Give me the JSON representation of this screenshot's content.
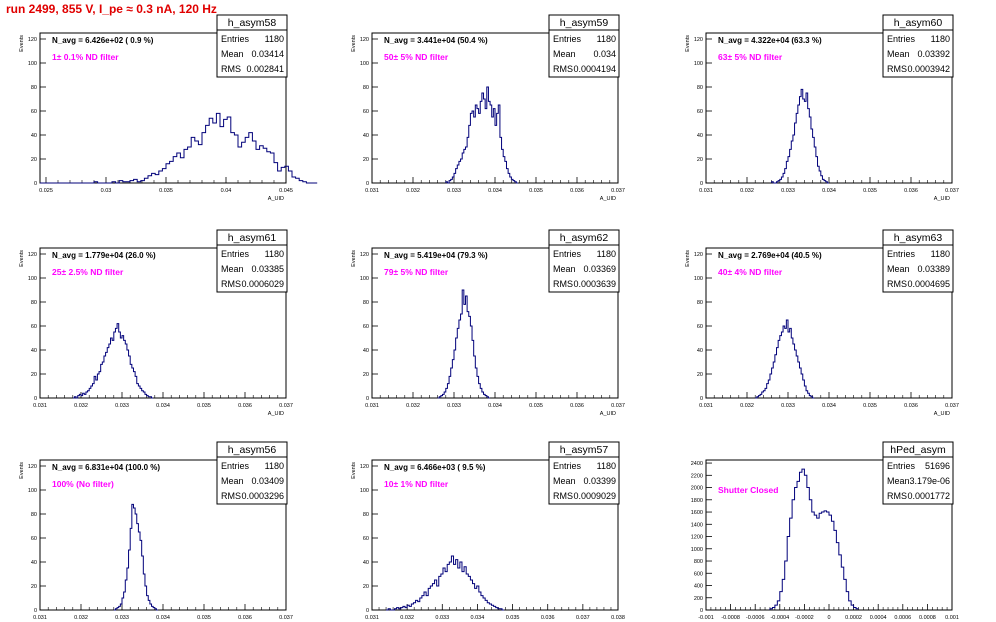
{
  "run_title": "run 2499,   855 V, I_pe ≈ 0.3 nA, 120 Hz",
  "colors": {
    "histogram": "#00007a",
    "filter_label": "#ff00ff",
    "run_title": "#e00000",
    "text": "#000000"
  },
  "stats_labels": {
    "entries": "Entries",
    "mean": "Mean",
    "rms": "RMS"
  },
  "chart_data": [
    {
      "type": "histogram",
      "name": "h_asym58",
      "navg": "N_avg = 6.426e+02 ( 0.9 %)",
      "filter": "1± 0.1% ND filter",
      "entries": "1180",
      "mean": "0.03414",
      "rms": "0.002841",
      "xlabel": "A_UID",
      "ylabel": "Events",
      "xlim": [
        0.0245,
        0.045
      ],
      "ylim": [
        0,
        125
      ],
      "xticks": [
        "0.025",
        "0.03",
        "0.035",
        "0.04",
        "0.045"
      ],
      "xtick_values": [
        0.025,
        0.03,
        0.035,
        0.04,
        0.045
      ],
      "yticks": [
        "0",
        "20",
        "40",
        "60",
        "80",
        "100",
        "120"
      ],
      "ytick_values": [
        0,
        20,
        40,
        60,
        80,
        100,
        120
      ],
      "bin_low": 0.0245,
      "bin_width": 0.0003,
      "counts": [
        0,
        0,
        0,
        0,
        0,
        0,
        0,
        0,
        0,
        0,
        0,
        0,
        0,
        0,
        0,
        1,
        0,
        0,
        0,
        0,
        1,
        0,
        2,
        1,
        1,
        2,
        3,
        1,
        2,
        4,
        6,
        8,
        7,
        10,
        12,
        16,
        18,
        22,
        25,
        21,
        28,
        30,
        38,
        35,
        32,
        42,
        48,
        54,
        50,
        58,
        47,
        53,
        55,
        42,
        40,
        30,
        34,
        38,
        42,
        35,
        28,
        31,
        29,
        26,
        25,
        17,
        10,
        13,
        14,
        10,
        5,
        4,
        2,
        1,
        0,
        0,
        0
      ]
    },
    {
      "type": "histogram",
      "name": "h_asym59",
      "navg": "N_avg = 3.441e+04 (50.4 %)",
      "filter": "50± 5% ND filter",
      "entries": "1180",
      "mean": "0.034",
      "rms": "0.0004194",
      "xlabel": "A_UID",
      "ylabel": "Events",
      "xlim": [
        0.031,
        0.037
      ],
      "ylim": [
        0,
        125
      ],
      "xticks": [
        "0.031",
        "0.032",
        "0.033",
        "0.034",
        "0.035",
        "0.036",
        "0.037"
      ],
      "xtick_values": [
        0.031,
        0.032,
        0.033,
        0.034,
        0.035,
        0.036,
        0.037
      ],
      "yticks": [
        "0",
        "20",
        "40",
        "60",
        "80",
        "100",
        "120"
      ],
      "ytick_values": [
        0,
        20,
        40,
        60,
        80,
        100,
        120
      ],
      "bin_low": 0.0328,
      "bin_width": 4e-05,
      "counts": [
        1,
        0,
        2,
        3,
        5,
        8,
        12,
        15,
        18,
        20,
        25,
        28,
        30,
        38,
        48,
        58,
        60,
        55,
        65,
        62,
        58,
        68,
        75,
        70,
        62,
        80,
        68,
        65,
        55,
        62,
        48,
        58,
        65,
        38,
        28,
        22,
        18,
        12,
        8,
        5,
        3,
        2,
        1,
        0
      ]
    },
    {
      "type": "histogram",
      "name": "h_asym60",
      "navg": "N_avg = 4.322e+04 (63.3 %)",
      "filter": "63± 5% ND filter",
      "entries": "1180",
      "mean": "0.03392",
      "rms": "0.0003942",
      "xlabel": "A_UID",
      "ylabel": "Events",
      "xlim": [
        0.031,
        0.037
      ],
      "ylim": [
        0,
        125
      ],
      "xticks": [
        "0.031",
        "0.032",
        "0.033",
        "0.034",
        "0.035",
        "0.036",
        "0.037"
      ],
      "xtick_values": [
        0.031,
        0.032,
        0.033,
        0.034,
        0.035,
        0.036,
        0.037
      ],
      "yticks": [
        "0",
        "20",
        "40",
        "60",
        "80",
        "100",
        "120"
      ],
      "ytick_values": [
        0,
        20,
        40,
        60,
        80,
        100,
        120
      ],
      "bin_low": 0.0326,
      "bin_width": 4e-05,
      "counts": [
        1,
        0,
        0,
        1,
        2,
        3,
        5,
        8,
        12,
        18,
        22,
        28,
        35,
        40,
        50,
        58,
        65,
        72,
        78,
        70,
        68,
        75,
        62,
        55,
        45,
        38,
        30,
        22,
        14,
        10,
        6,
        3,
        2,
        1,
        0
      ]
    },
    {
      "type": "histogram",
      "name": "h_asym61",
      "navg": "N_avg = 1.779e+04 (26.0 %)",
      "filter": "25± 2.5% ND filter",
      "entries": "1180",
      "mean": "0.03385",
      "rms": "0.0006029",
      "xlabel": "A_UID",
      "ylabel": "Events",
      "xlim": [
        0.031,
        0.037
      ],
      "ylim": [
        0,
        125
      ],
      "xticks": [
        "0.031",
        "0.032",
        "0.033",
        "0.034",
        "0.035",
        "0.036",
        "0.037"
      ],
      "xtick_values": [
        0.031,
        0.032,
        0.033,
        0.034,
        0.035,
        0.036,
        0.037
      ],
      "yticks": [
        "0",
        "20",
        "40",
        "60",
        "80",
        "100",
        "120"
      ],
      "ytick_values": [
        0,
        20,
        40,
        60,
        80,
        100,
        120
      ],
      "bin_low": 0.0318,
      "bin_width": 4e-05,
      "counts": [
        0,
        1,
        0,
        2,
        3,
        2,
        4,
        3,
        5,
        6,
        8,
        10,
        12,
        18,
        15,
        20,
        22,
        28,
        30,
        35,
        38,
        42,
        45,
        50,
        48,
        55,
        58,
        62,
        55,
        50,
        52,
        48,
        45,
        40,
        35,
        28,
        25,
        22,
        18,
        12,
        10,
        8,
        6,
        5,
        3,
        2,
        1,
        1,
        0
      ]
    },
    {
      "type": "histogram",
      "name": "h_asym62",
      "navg": "N_avg = 5.419e+04 (79.3 %)",
      "filter": "79± 5% ND filter",
      "entries": "1180",
      "mean": "0.03369",
      "rms": "0.0003639",
      "xlabel": "A_UID",
      "ylabel": "Events",
      "xlim": [
        0.031,
        0.037
      ],
      "ylim": [
        0,
        125
      ],
      "xticks": [
        "0.031",
        "0.032",
        "0.033",
        "0.034",
        "0.035",
        "0.036",
        "0.037"
      ],
      "xtick_values": [
        0.031,
        0.032,
        0.033,
        0.034,
        0.035,
        0.036,
        0.037
      ],
      "yticks": [
        "0",
        "20",
        "40",
        "60",
        "80",
        "100",
        "120"
      ],
      "ytick_values": [
        0,
        20,
        40,
        60,
        80,
        100,
        120
      ],
      "bin_low": 0.0326,
      "bin_width": 4e-05,
      "counts": [
        0,
        1,
        2,
        3,
        5,
        8,
        12,
        18,
        25,
        32,
        40,
        50,
        58,
        65,
        70,
        90,
        78,
        85,
        72,
        68,
        60,
        48,
        35,
        25,
        18,
        12,
        8,
        5,
        3,
        2,
        1,
        0
      ]
    },
    {
      "type": "histogram",
      "name": "h_asym63",
      "navg": "N_avg = 2.769e+04 (40.5 %)",
      "filter": "40± 4% ND filter",
      "entries": "1180",
      "mean": "0.03389",
      "rms": "0.0004695",
      "xlabel": "A_UID",
      "ylabel": "Events",
      "xlim": [
        0.031,
        0.037
      ],
      "ylim": [
        0,
        125
      ],
      "xticks": [
        "0.031",
        "0.032",
        "0.033",
        "0.034",
        "0.035",
        "0.036",
        "0.037"
      ],
      "xtick_values": [
        0.031,
        0.032,
        0.033,
        0.034,
        0.035,
        0.036,
        0.037
      ],
      "yticks": [
        "0",
        "20",
        "40",
        "60",
        "80",
        "100",
        "120"
      ],
      "ytick_values": [
        0,
        20,
        40,
        60,
        80,
        100,
        120
      ],
      "bin_low": 0.0322,
      "bin_width": 4e-05,
      "counts": [
        0,
        1,
        2,
        3,
        5,
        6,
        8,
        12,
        15,
        20,
        25,
        30,
        36,
        42,
        48,
        52,
        55,
        60,
        58,
        65,
        55,
        58,
        50,
        45,
        40,
        35,
        30,
        25,
        20,
        15,
        10,
        6,
        4,
        2,
        1,
        0
      ]
    },
    {
      "type": "histogram",
      "name": "h_asym56",
      "navg": "N_avg = 6.831e+04 (100.0 %)",
      "filter": "100% (No filter)",
      "entries": "1180",
      "mean": "0.03409",
      "rms": "0.0003296",
      "xlabel": "A_UID",
      "ylabel": "Events",
      "xlim": [
        0.031,
        0.037
      ],
      "ylim": [
        0,
        125
      ],
      "xticks": [
        "0.031",
        "0.032",
        "0.033",
        "0.034",
        "0.035",
        "0.036",
        "0.037"
      ],
      "xtick_values": [
        0.031,
        0.032,
        0.033,
        0.034,
        0.035,
        0.036,
        0.037
      ],
      "yticks": [
        "0",
        "20",
        "40",
        "60",
        "80",
        "100",
        "120"
      ],
      "ytick_values": [
        0,
        20,
        40,
        60,
        80,
        100,
        120
      ],
      "bin_low": 0.0328,
      "bin_width": 4e-05,
      "counts": [
        0,
        1,
        2,
        3,
        5,
        10,
        15,
        25,
        35,
        50,
        68,
        88,
        85,
        80,
        72,
        65,
        58,
        45,
        30,
        20,
        12,
        8,
        5,
        3,
        2,
        1,
        0
      ]
    },
    {
      "type": "histogram",
      "name": "h_asym57",
      "navg": "N_avg = 6.466e+03 ( 9.5 %)",
      "filter": "10± 1% ND filter",
      "entries": "1180",
      "mean": "0.03399",
      "rms": "0.0009029",
      "xlabel": "A_UID",
      "ylabel": "Events",
      "xlim": [
        0.031,
        0.038
      ],
      "ylim": [
        0,
        125
      ],
      "xticks": [
        "0.031",
        "0.032",
        "0.033",
        "0.034",
        "0.035",
        "0.036",
        "0.037",
        "0.038"
      ],
      "xtick_values": [
        0.031,
        0.032,
        0.033,
        0.034,
        0.035,
        0.036,
        0.037,
        0.038
      ],
      "yticks": [
        "0",
        "20",
        "40",
        "60",
        "80",
        "100",
        "120"
      ],
      "ytick_values": [
        0,
        20,
        40,
        60,
        80,
        100,
        120
      ],
      "bin_low": 0.0314,
      "bin_width": 6e-05,
      "counts": [
        0,
        1,
        0,
        0,
        1,
        2,
        1,
        2,
        3,
        2,
        4,
        3,
        5,
        6,
        8,
        7,
        10,
        12,
        15,
        12,
        18,
        20,
        22,
        25,
        20,
        28,
        30,
        35,
        32,
        38,
        40,
        45,
        38,
        42,
        35,
        40,
        32,
        36,
        30,
        28,
        25,
        22,
        18,
        20,
        15,
        12,
        10,
        8,
        6,
        5,
        4,
        3,
        2,
        1,
        1,
        0
      ]
    },
    {
      "type": "histogram",
      "name": "hPed_asym",
      "navg": "",
      "filter": "Shutter Closed",
      "entries": "51696",
      "mean": "3.179e-06",
      "rms": "0.0001772",
      "xlabel": "",
      "ylabel": "",
      "xlim": [
        -0.001,
        0.001
      ],
      "ylim": [
        0,
        2450
      ],
      "xticks": [
        "-0.001",
        "-0.0008",
        "-0.0006",
        "-0.0004",
        "-0.0002",
        "0",
        "0.0002",
        "0.0004",
        "0.0006",
        "0.0008",
        "0.001"
      ],
      "xtick_values": [
        -0.001,
        -0.0008,
        -0.0006,
        -0.0004,
        -0.0002,
        0,
        0.0002,
        0.0004,
        0.0006,
        0.0008,
        0.001
      ],
      "yticks": [
        "0",
        "200",
        "400",
        "600",
        "800",
        "1000",
        "1200",
        "1400",
        "1600",
        "1800",
        "2000",
        "2200",
        "2400"
      ],
      "ytick_values": [
        0,
        200,
        400,
        600,
        800,
        1000,
        1200,
        1400,
        1600,
        1800,
        2000,
        2200,
        2400
      ],
      "bin_low": -0.00048,
      "bin_width": 2e-05,
      "counts": [
        20,
        40,
        80,
        150,
        300,
        500,
        800,
        1200,
        1500,
        1800,
        2000,
        2100,
        2250,
        2300,
        2200,
        2000,
        1800,
        1600,
        1550,
        1500,
        1580,
        1600,
        1620,
        1600,
        1550,
        1450,
        1300,
        1100,
        900,
        700,
        500,
        300,
        150,
        80,
        40,
        20
      ]
    }
  ]
}
